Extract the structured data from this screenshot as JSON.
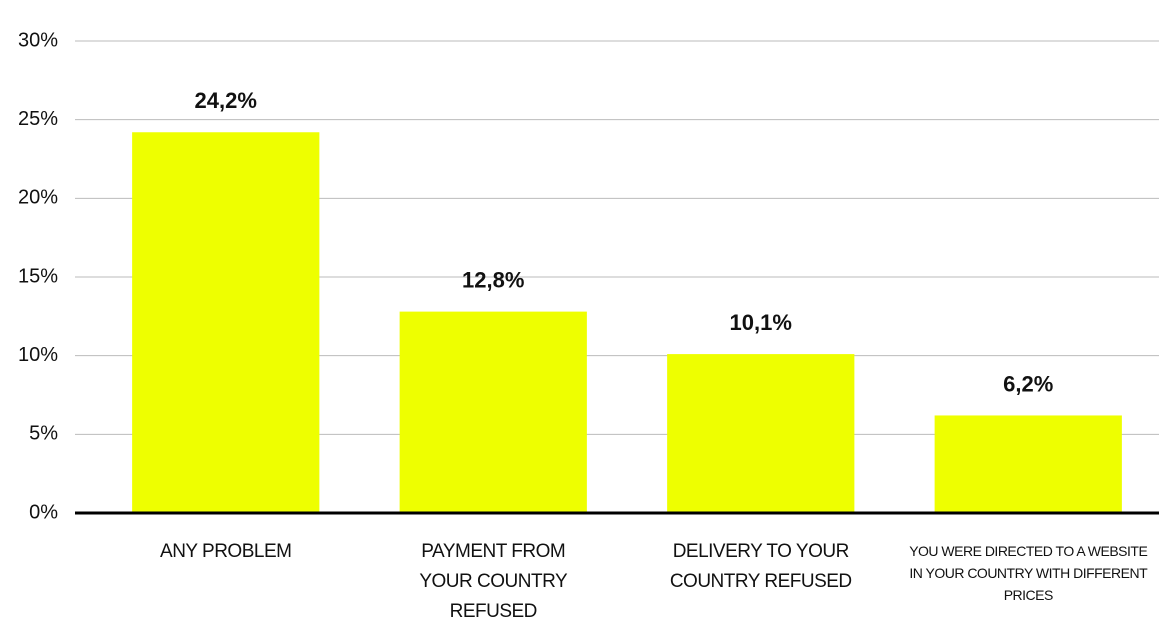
{
  "chart_data": {
    "type": "bar",
    "categories": [
      "ANY PROBLEM",
      "PAYMENT FROM YOUR COUNTRY REFUSED",
      "DELIVERY TO YOUR COUNTRY REFUSED",
      "YOU WERE DIRECTED TO A WEBSITE IN YOUR COUNTRY WITH DIFFERENT PRICES"
    ],
    "values": [
      24.2,
      12.8,
      10.1,
      6.2
    ],
    "value_labels": [
      "24,2%",
      "12,8%",
      "10,1%",
      "6,2%"
    ],
    "color": "#eeff00",
    "ylim": [
      0,
      30
    ],
    "yticks": [
      {
        "value": 0,
        "label": "0%"
      },
      {
        "value": 5,
        "label": "5%"
      },
      {
        "value": 10,
        "label": "10%"
      },
      {
        "value": 15,
        "label": "15%"
      },
      {
        "value": 20,
        "label": "20%"
      },
      {
        "value": 25,
        "label": "25%"
      },
      {
        "value": 30,
        "label": "30%"
      }
    ],
    "grid": true
  }
}
